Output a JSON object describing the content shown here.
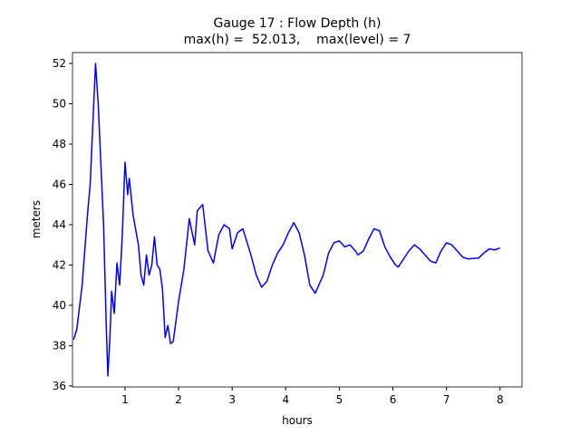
{
  "chart_data": {
    "type": "line",
    "title": "Gauge 17 : Flow Depth (h)",
    "subtitle": "max(h) =  52.013,    max(level) = 7",
    "x_label": "hours",
    "y_label": "meters",
    "x": [
      0.04,
      0.1,
      0.2,
      0.3,
      0.35,
      0.4,
      0.45,
      0.5,
      0.55,
      0.6,
      0.65,
      0.68,
      0.72,
      0.75,
      0.8,
      0.85,
      0.9,
      0.95,
      1.0,
      1.05,
      1.08,
      1.15,
      1.25,
      1.3,
      1.35,
      1.4,
      1.45,
      1.5,
      1.55,
      1.6,
      1.65,
      1.7,
      1.75,
      1.8,
      1.85,
      1.9,
      2.0,
      2.1,
      2.2,
      2.3,
      2.35,
      2.45,
      2.55,
      2.65,
      2.75,
      2.85,
      2.95,
      3.0,
      3.1,
      3.2,
      3.35,
      3.45,
      3.55,
      3.65,
      3.75,
      3.85,
      3.95,
      4.05,
      4.15,
      4.25,
      4.35,
      4.45,
      4.55,
      4.7,
      4.8,
      4.9,
      5.0,
      5.1,
      5.2,
      5.3,
      5.35,
      5.45,
      5.55,
      5.65,
      5.75,
      5.85,
      5.95,
      6.05,
      6.1,
      6.2,
      6.3,
      6.4,
      6.5,
      6.6,
      6.7,
      6.8,
      6.9,
      7.0,
      7.1,
      7.2,
      7.3,
      7.4,
      7.6,
      7.7,
      7.8,
      7.9,
      8.0
    ],
    "series": [
      {
        "name": "h",
        "color": "#0000ff",
        "values": [
          38.3,
          38.8,
          41.0,
          44.5,
          46.0,
          49.0,
          52.0,
          50.0,
          47.0,
          44.0,
          39.0,
          36.5,
          38.5,
          40.7,
          39.6,
          42.1,
          41.0,
          43.5,
          47.1,
          45.5,
          46.3,
          44.5,
          43.0,
          41.5,
          41.0,
          42.5,
          41.5,
          42.0,
          43.4,
          42.0,
          41.8,
          40.8,
          38.4,
          39.0,
          38.1,
          38.2,
          40.2,
          41.8,
          44.3,
          43.0,
          44.7,
          45.0,
          42.7,
          42.1,
          43.5,
          44.0,
          43.8,
          42.8,
          43.6,
          43.8,
          42.5,
          41.5,
          40.9,
          41.2,
          42.0,
          42.6,
          43.0,
          43.6,
          44.1,
          43.6,
          42.5,
          41.0,
          40.6,
          41.5,
          42.6,
          43.1,
          43.2,
          42.9,
          43.0,
          42.7,
          42.5,
          42.7,
          43.3,
          43.8,
          43.7,
          42.9,
          42.4,
          42.0,
          41.9,
          42.3,
          42.7,
          43.0,
          42.8,
          42.5,
          42.2,
          42.1,
          42.7,
          43.1,
          43.0,
          42.7,
          42.4,
          42.3,
          42.35,
          42.6,
          42.8,
          42.75,
          42.85
        ]
      }
    ],
    "xlim": [
      0.02,
      8.41
    ],
    "ylim": [
      35.95,
      52.54
    ],
    "xticks": [
      1,
      2,
      3,
      4,
      5,
      6,
      7,
      8
    ],
    "yticks": [
      36,
      38,
      40,
      42,
      44,
      46,
      48,
      50,
      52
    ]
  }
}
